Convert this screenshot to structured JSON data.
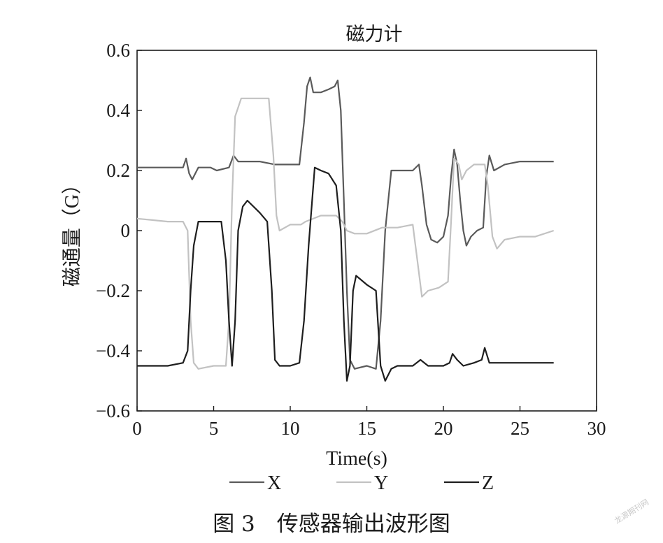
{
  "chart_data": {
    "type": "line",
    "title": "磁力计",
    "xlabel": "Time(s)",
    "ylabel": "磁通量（G）",
    "xlim": [
      0,
      30
    ],
    "ylim": [
      -0.6,
      0.6
    ],
    "xticks": [
      0,
      5,
      10,
      15,
      20,
      25,
      30
    ],
    "yticks": [
      0.6,
      0.4,
      0.2,
      0,
      -0.2,
      -0.4,
      -0.6
    ],
    "xtick_labels": [
      "0",
      "5",
      "10",
      "15",
      "20",
      "25",
      "30"
    ],
    "ytick_labels": [
      "0.6",
      "0.4",
      "0.2",
      "0",
      "−0.2",
      "−0.4",
      "−0.6"
    ],
    "grid": false,
    "legend_position": "bottom",
    "series": [
      {
        "name": "X",
        "color": "#5a5a5a",
        "points": [
          [
            0,
            0.21
          ],
          [
            1,
            0.21
          ],
          [
            2,
            0.21
          ],
          [
            3,
            0.21
          ],
          [
            3.2,
            0.24
          ],
          [
            3.4,
            0.19
          ],
          [
            3.6,
            0.17
          ],
          [
            4,
            0.21
          ],
          [
            4.8,
            0.21
          ],
          [
            5.2,
            0.2
          ],
          [
            6,
            0.21
          ],
          [
            6.3,
            0.25
          ],
          [
            6.6,
            0.23
          ],
          [
            7,
            0.23
          ],
          [
            8,
            0.23
          ],
          [
            9,
            0.22
          ],
          [
            10,
            0.22
          ],
          [
            10.6,
            0.22
          ],
          [
            10.9,
            0.36
          ],
          [
            11.1,
            0.48
          ],
          [
            11.3,
            0.51
          ],
          [
            11.5,
            0.46
          ],
          [
            12,
            0.46
          ],
          [
            12.5,
            0.47
          ],
          [
            12.9,
            0.48
          ],
          [
            13.1,
            0.5
          ],
          [
            13.3,
            0.4
          ],
          [
            13.5,
            0.1
          ],
          [
            13.7,
            -0.2
          ],
          [
            13.9,
            -0.43
          ],
          [
            14.2,
            -0.46
          ],
          [
            15,
            -0.45
          ],
          [
            15.6,
            -0.46
          ],
          [
            15.9,
            -0.3
          ],
          [
            16.2,
            0
          ],
          [
            16.6,
            0.2
          ],
          [
            17,
            0.2
          ],
          [
            18,
            0.2
          ],
          [
            18.4,
            0.22
          ],
          [
            18.6,
            0.15
          ],
          [
            18.9,
            0.02
          ],
          [
            19.2,
            -0.03
          ],
          [
            19.6,
            -0.04
          ],
          [
            20,
            -0.02
          ],
          [
            20.3,
            0.05
          ],
          [
            20.5,
            0.18
          ],
          [
            20.7,
            0.27
          ],
          [
            20.9,
            0.22
          ],
          [
            21.1,
            0.1
          ],
          [
            21.3,
            0.0
          ],
          [
            21.5,
            -0.05
          ],
          [
            21.8,
            -0.02
          ],
          [
            22.2,
            0
          ],
          [
            22.6,
            0.01
          ],
          [
            22.8,
            0.18
          ],
          [
            23,
            0.25
          ],
          [
            23.3,
            0.2
          ],
          [
            24,
            0.22
          ],
          [
            25,
            0.23
          ],
          [
            26,
            0.23
          ],
          [
            27.2,
            0.23
          ]
        ]
      },
      {
        "name": "Y",
        "color": "#c2c2c2",
        "points": [
          [
            0,
            0.04
          ],
          [
            1,
            0.035
          ],
          [
            2,
            0.03
          ],
          [
            3,
            0.03
          ],
          [
            3.3,
            0
          ],
          [
            3.5,
            -0.3
          ],
          [
            3.7,
            -0.44
          ],
          [
            4,
            -0.46
          ],
          [
            5,
            -0.45
          ],
          [
            5.8,
            -0.45
          ],
          [
            6,
            -0.3
          ],
          [
            6.2,
            0.1
          ],
          [
            6.4,
            0.38
          ],
          [
            6.8,
            0.44
          ],
          [
            8,
            0.44
          ],
          [
            8.6,
            0.44
          ],
          [
            8.9,
            0.25
          ],
          [
            9.1,
            0.05
          ],
          [
            9.3,
            0
          ],
          [
            10,
            0.02
          ],
          [
            10.7,
            0.02
          ],
          [
            11,
            0.03
          ],
          [
            12,
            0.05
          ],
          [
            13,
            0.05
          ],
          [
            13.4,
            0.03
          ],
          [
            13.7,
            0
          ],
          [
            14.2,
            -0.01
          ],
          [
            15,
            -0.01
          ],
          [
            16,
            0.01
          ],
          [
            17,
            0.01
          ],
          [
            18,
            0.02
          ],
          [
            18.3,
            -0.1
          ],
          [
            18.6,
            -0.22
          ],
          [
            19,
            -0.2
          ],
          [
            19.7,
            -0.19
          ],
          [
            20,
            -0.18
          ],
          [
            20.3,
            -0.17
          ],
          [
            20.5,
            0.03
          ],
          [
            20.7,
            0.24
          ],
          [
            21,
            0.22
          ],
          [
            21.2,
            0.17
          ],
          [
            21.5,
            0.2
          ],
          [
            22,
            0.22
          ],
          [
            22.7,
            0.22
          ],
          [
            22.9,
            0.15
          ],
          [
            23.2,
            -0.02
          ],
          [
            23.5,
            -0.06
          ],
          [
            24,
            -0.03
          ],
          [
            25,
            -0.02
          ],
          [
            26,
            -0.02
          ],
          [
            27.2,
            0.0
          ]
        ]
      },
      {
        "name": "Z",
        "color": "#1e1e1e",
        "points": [
          [
            0,
            -0.45
          ],
          [
            1,
            -0.45
          ],
          [
            2,
            -0.45
          ],
          [
            3,
            -0.44
          ],
          [
            3.3,
            -0.4
          ],
          [
            3.5,
            -0.2
          ],
          [
            3.7,
            -0.05
          ],
          [
            4,
            0.03
          ],
          [
            5,
            0.03
          ],
          [
            5.5,
            0.03
          ],
          [
            5.8,
            -0.1
          ],
          [
            6,
            -0.3
          ],
          [
            6.2,
            -0.45
          ],
          [
            6.4,
            -0.3
          ],
          [
            6.6,
            0
          ],
          [
            6.9,
            0.08
          ],
          [
            7.2,
            0.1
          ],
          [
            8,
            0.06
          ],
          [
            8.5,
            0.03
          ],
          [
            8.8,
            -0.2
          ],
          [
            9,
            -0.43
          ],
          [
            9.3,
            -0.45
          ],
          [
            10,
            -0.45
          ],
          [
            10.6,
            -0.44
          ],
          [
            10.9,
            -0.3
          ],
          [
            11.2,
            -0.05
          ],
          [
            11.6,
            0.21
          ],
          [
            12,
            0.2
          ],
          [
            12.5,
            0.19
          ],
          [
            13,
            0.15
          ],
          [
            13.3,
            0.0
          ],
          [
            13.5,
            -0.3
          ],
          [
            13.7,
            -0.5
          ],
          [
            13.9,
            -0.45
          ],
          [
            14.1,
            -0.2
          ],
          [
            14.3,
            -0.15
          ],
          [
            15,
            -0.18
          ],
          [
            15.6,
            -0.2
          ],
          [
            15.9,
            -0.45
          ],
          [
            16.2,
            -0.5
          ],
          [
            16.6,
            -0.46
          ],
          [
            17,
            -0.45
          ],
          [
            18,
            -0.45
          ],
          [
            18.5,
            -0.43
          ],
          [
            19,
            -0.45
          ],
          [
            20,
            -0.45
          ],
          [
            20.4,
            -0.44
          ],
          [
            20.6,
            -0.41
          ],
          [
            20.9,
            -0.43
          ],
          [
            21.3,
            -0.45
          ],
          [
            22,
            -0.44
          ],
          [
            22.5,
            -0.43
          ],
          [
            22.7,
            -0.39
          ],
          [
            23,
            -0.44
          ],
          [
            24,
            -0.44
          ],
          [
            25,
            -0.44
          ],
          [
            26,
            -0.44
          ],
          [
            27.2,
            -0.44
          ]
        ]
      }
    ]
  },
  "caption": "图 3　传感器输出波形图",
  "watermark": "龙源期刊网"
}
